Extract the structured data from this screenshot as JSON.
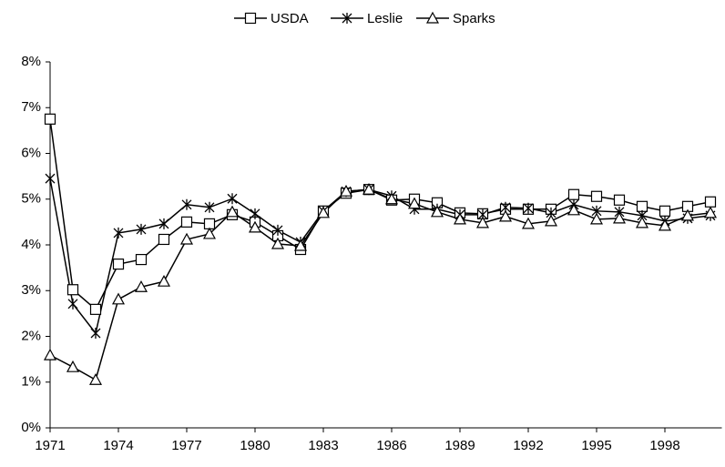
{
  "chart_data": {
    "type": "line",
    "x": [
      1971,
      1972,
      1973,
      1974,
      1975,
      1976,
      1977,
      1978,
      1979,
      1980,
      1981,
      1982,
      1983,
      1984,
      1985,
      1986,
      1987,
      1988,
      1989,
      1990,
      1991,
      1992,
      1993,
      1994,
      1995,
      1996,
      1997,
      1998,
      1999,
      2000
    ],
    "series": [
      {
        "name": "USDA",
        "color": "#000000",
        "marker": "square",
        "values": [
          6.75,
          3.02,
          2.59,
          3.58,
          3.68,
          4.12,
          4.5,
          4.46,
          4.66,
          4.5,
          4.2,
          3.9,
          4.74,
          5.13,
          5.21,
          4.98,
          5.0,
          4.92,
          4.7,
          4.68,
          4.78,
          4.78,
          4.78,
          5.1,
          5.06,
          4.98,
          4.84,
          4.74,
          4.84,
          4.94
        ]
      },
      {
        "name": "Leslie",
        "color": "#000000",
        "marker": "star",
        "values": [
          5.45,
          2.71,
          2.07,
          4.26,
          4.34,
          4.46,
          4.88,
          4.82,
          5.01,
          4.68,
          4.32,
          4.06,
          4.74,
          5.17,
          5.21,
          5.07,
          4.78,
          4.78,
          4.66,
          4.66,
          4.82,
          4.8,
          4.7,
          4.88,
          4.74,
          4.72,
          4.64,
          4.52,
          4.58,
          4.64
        ]
      },
      {
        "name": "Sparks",
        "color": "#000000",
        "marker": "triangle",
        "values": [
          1.59,
          1.33,
          1.05,
          2.81,
          3.08,
          3.2,
          4.12,
          4.24,
          4.72,
          4.38,
          4.02,
          3.98,
          4.7,
          5.17,
          5.21,
          5.0,
          4.9,
          4.72,
          4.56,
          4.48,
          4.62,
          4.46,
          4.52,
          4.76,
          4.56,
          4.58,
          4.48,
          4.42,
          4.64,
          4.7
        ]
      }
    ],
    "xlim": [
      1971,
      2000.5
    ],
    "xticks": [
      1971,
      1974,
      1977,
      1980,
      1983,
      1986,
      1989,
      1992,
      1995,
      1998
    ],
    "ylim": [
      0,
      8
    ],
    "yticks": [
      {
        "value": 0,
        "label": "0%"
      },
      {
        "value": 1,
        "label": "1%"
      },
      {
        "value": 2,
        "label": "2%"
      },
      {
        "value": 3,
        "label": "3%"
      },
      {
        "value": 4,
        "label": "4%"
      },
      {
        "value": 5,
        "label": "5%"
      },
      {
        "value": 6,
        "label": "6%"
      },
      {
        "value": 7,
        "label": "7%"
      },
      {
        "value": 8,
        "label": "8%"
      }
    ],
    "grid": false,
    "legend": "top"
  }
}
